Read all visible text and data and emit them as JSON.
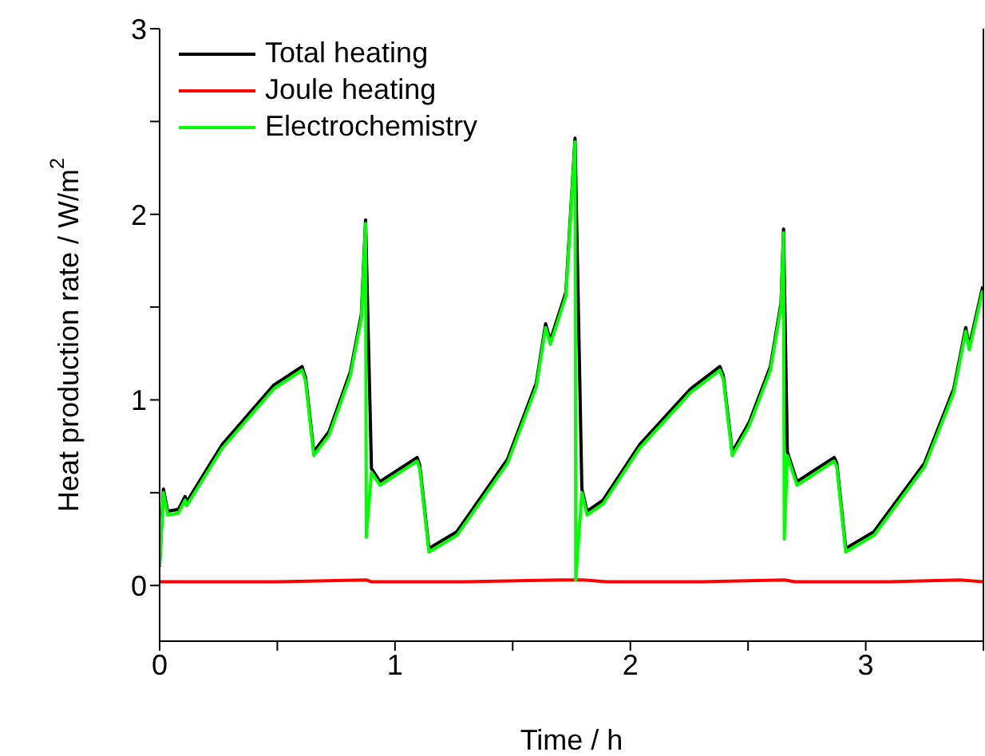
{
  "chart_data": {
    "type": "line",
    "xlabel": "Time  /  h",
    "ylabel": "Heat production rate  /  W/m$^{2}$",
    "xlim": [
      0,
      3.5
    ],
    "ylim": [
      -0.3,
      3
    ],
    "xticks": [
      0,
      {
        "value": 0.5,
        "label": null
      },
      1,
      {
        "value": 1.5,
        "label": null
      },
      2,
      {
        "value": 2.5,
        "label": null
      },
      3,
      {
        "value": 3.5,
        "label": null
      }
    ],
    "yticks": [
      0,
      {
        "value": 0.5,
        "label": null
      },
      1,
      {
        "value": 1.5,
        "label": null
      },
      2,
      {
        "value": 2.5,
        "label": null
      },
      3
    ],
    "grid": false,
    "legend": "top left",
    "marker": "none",
    "line_style": "solid",
    "series": [
      {
        "name": "Total heating",
        "color": "#000000",
        "x": [
          0,
          0.016,
          0.034,
          0.08,
          0.108,
          0.115,
          0.266,
          0.485,
          0.605,
          0.62,
          0.655,
          0.72,
          0.81,
          0.857,
          0.875,
          0.9,
          0.936,
          1.094,
          1.105,
          1.144,
          1.263,
          1.478,
          1.6,
          1.64,
          1.66,
          1.726,
          1.765,
          1.794,
          1.816,
          1.884,
          2.04,
          2.256,
          2.38,
          2.395,
          2.433,
          2.505,
          2.595,
          2.64,
          2.651,
          2.667,
          2.708,
          2.866,
          2.877,
          2.915,
          3.035,
          3.25,
          3.374,
          3.425,
          3.44,
          3.497
        ],
        "values": [
          0.12,
          0.52,
          0.4,
          0.41,
          0.48,
          0.45,
          0.76,
          1.08,
          1.18,
          1.12,
          0.72,
          0.83,
          1.15,
          1.46,
          1.97,
          0.63,
          0.56,
          0.69,
          0.65,
          0.2,
          0.29,
          0.68,
          1.09,
          1.41,
          1.32,
          1.58,
          2.41,
          0.52,
          0.4,
          0.46,
          0.76,
          1.06,
          1.18,
          1.13,
          0.72,
          0.88,
          1.18,
          1.52,
          1.92,
          0.72,
          0.56,
          0.69,
          0.66,
          0.2,
          0.29,
          0.66,
          1.06,
          1.39,
          1.29,
          1.61
        ]
      },
      {
        "name": "Joule heating",
        "color": "#ff0000",
        "x": [
          0,
          0.5,
          0.878,
          0.9,
          1.3,
          1.7,
          1.8,
          1.9,
          2.3,
          2.654,
          2.7,
          3.1,
          3.4,
          3.5
        ],
        "values": [
          0.02,
          0.02,
          0.03,
          0.02,
          0.02,
          0.03,
          0.03,
          0.02,
          0.02,
          0.03,
          0.02,
          0.02,
          0.03,
          0.02
        ]
      },
      {
        "name": "Electrochemistry",
        "color": "#00ff00",
        "x": [
          0,
          0.016,
          0.034,
          0.08,
          0.108,
          0.115,
          0.266,
          0.485,
          0.605,
          0.62,
          0.655,
          0.72,
          0.81,
          0.857,
          0.875,
          0.878,
          0.9,
          0.936,
          1.094,
          1.105,
          1.144,
          1.263,
          1.478,
          1.6,
          1.64,
          1.66,
          1.726,
          1.765,
          1.768,
          1.794,
          1.816,
          1.884,
          2.04,
          2.256,
          2.38,
          2.395,
          2.433,
          2.505,
          2.595,
          2.64,
          2.651,
          2.654,
          2.667,
          2.708,
          2.866,
          2.877,
          2.915,
          3.035,
          3.25,
          3.374,
          3.425,
          3.44,
          3.497
        ],
        "values": [
          0.1,
          0.5,
          0.38,
          0.39,
          0.46,
          0.43,
          0.74,
          1.06,
          1.16,
          1.1,
          0.7,
          0.81,
          1.13,
          1.44,
          1.95,
          0.26,
          0.61,
          0.54,
          0.67,
          0.63,
          0.18,
          0.27,
          0.66,
          1.07,
          1.39,
          1.3,
          1.56,
          2.39,
          0.03,
          0.5,
          0.38,
          0.44,
          0.74,
          1.04,
          1.16,
          1.11,
          0.7,
          0.86,
          1.16,
          1.5,
          1.9,
          0.25,
          0.7,
          0.54,
          0.67,
          0.64,
          0.18,
          0.27,
          0.64,
          1.04,
          1.37,
          1.27,
          1.59
        ]
      }
    ]
  }
}
